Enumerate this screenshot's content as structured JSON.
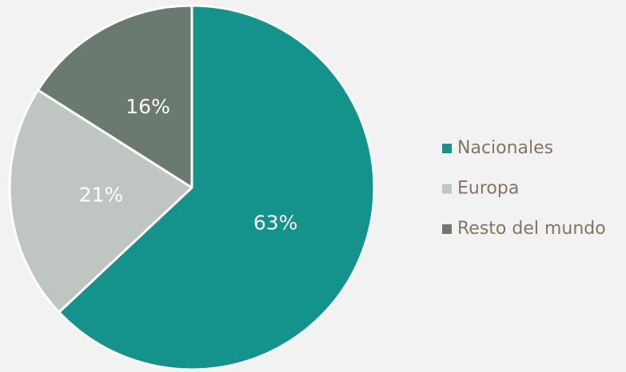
{
  "chart_data": {
    "type": "pie",
    "categories": [
      "Nacionales",
      "Europa",
      "Resto del mundo"
    ],
    "values": [
      63,
      21,
      16
    ],
    "value_labels": [
      "63%",
      "21%",
      "16%"
    ],
    "colors": [
      "#13938b",
      "#bfc6c2",
      "#6b7a70"
    ],
    "legend": "right"
  }
}
